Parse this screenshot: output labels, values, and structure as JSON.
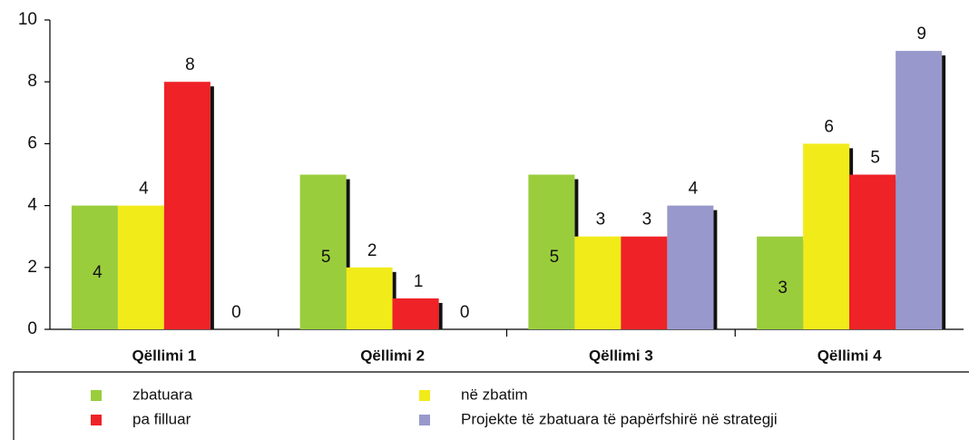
{
  "chart_data": {
    "type": "bar",
    "categories": [
      "Qëllimi 1",
      "Qëllimi 2",
      "Qëllimi 3",
      "Qëllimi 4"
    ],
    "series": [
      {
        "name": "zbatuara",
        "color": "#9acd3c",
        "values": [
          4,
          5,
          5,
          3
        ]
      },
      {
        "name": "në zbatim",
        "color": "#f2eb1a",
        "values": [
          4,
          2,
          3,
          6
        ]
      },
      {
        "name": "pa filluar",
        "color": "#ee2227",
        "values": [
          8,
          1,
          3,
          5
        ]
      },
      {
        "name": "Projekte të zbatuara të papërfshirë në strategji",
        "color": "#9898cc",
        "values": [
          0,
          0,
          4,
          9
        ]
      }
    ],
    "ylim": [
      0,
      10
    ],
    "yticks": [
      0,
      2,
      4,
      6,
      8,
      10
    ],
    "grid": false,
    "legend": "bottom"
  }
}
